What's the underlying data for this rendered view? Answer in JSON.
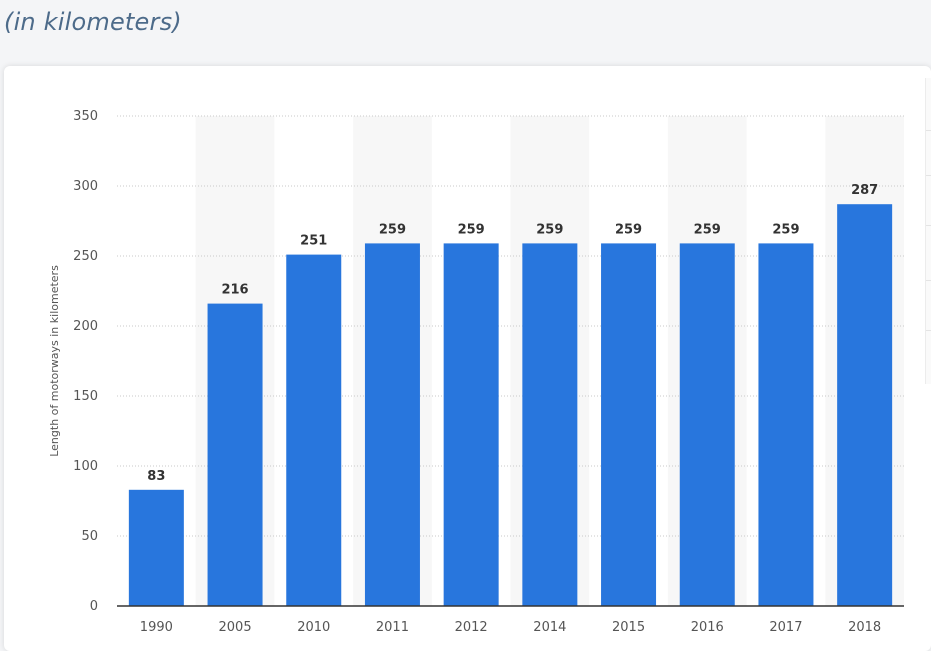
{
  "header": {
    "subtitle": "(in kilometers)"
  },
  "chart_data": {
    "type": "bar",
    "categories": [
      "1990",
      "2005",
      "2010",
      "2011",
      "2012",
      "2014",
      "2015",
      "2016",
      "2017",
      "2018"
    ],
    "values": [
      83,
      216,
      251,
      259,
      259,
      259,
      259,
      259,
      259,
      287
    ],
    "data_labels": [
      "83",
      "216",
      "251",
      "259",
      "259",
      "259",
      "259",
      "259",
      "259",
      "287"
    ],
    "ylabel": "Length of motorways in kilometers",
    "xlabel": "",
    "ylim": [
      0,
      350
    ],
    "yticks": [
      0,
      50,
      100,
      150,
      200,
      250,
      300,
      350
    ],
    "grid": true,
    "alternating_column_bands": true,
    "colors": {
      "bar": "#2876dd",
      "band": "#f7f7f7",
      "grid": "#c9c9c9",
      "axis": "#333333",
      "tick_text": "#555555",
      "label_text": "#333333"
    }
  }
}
